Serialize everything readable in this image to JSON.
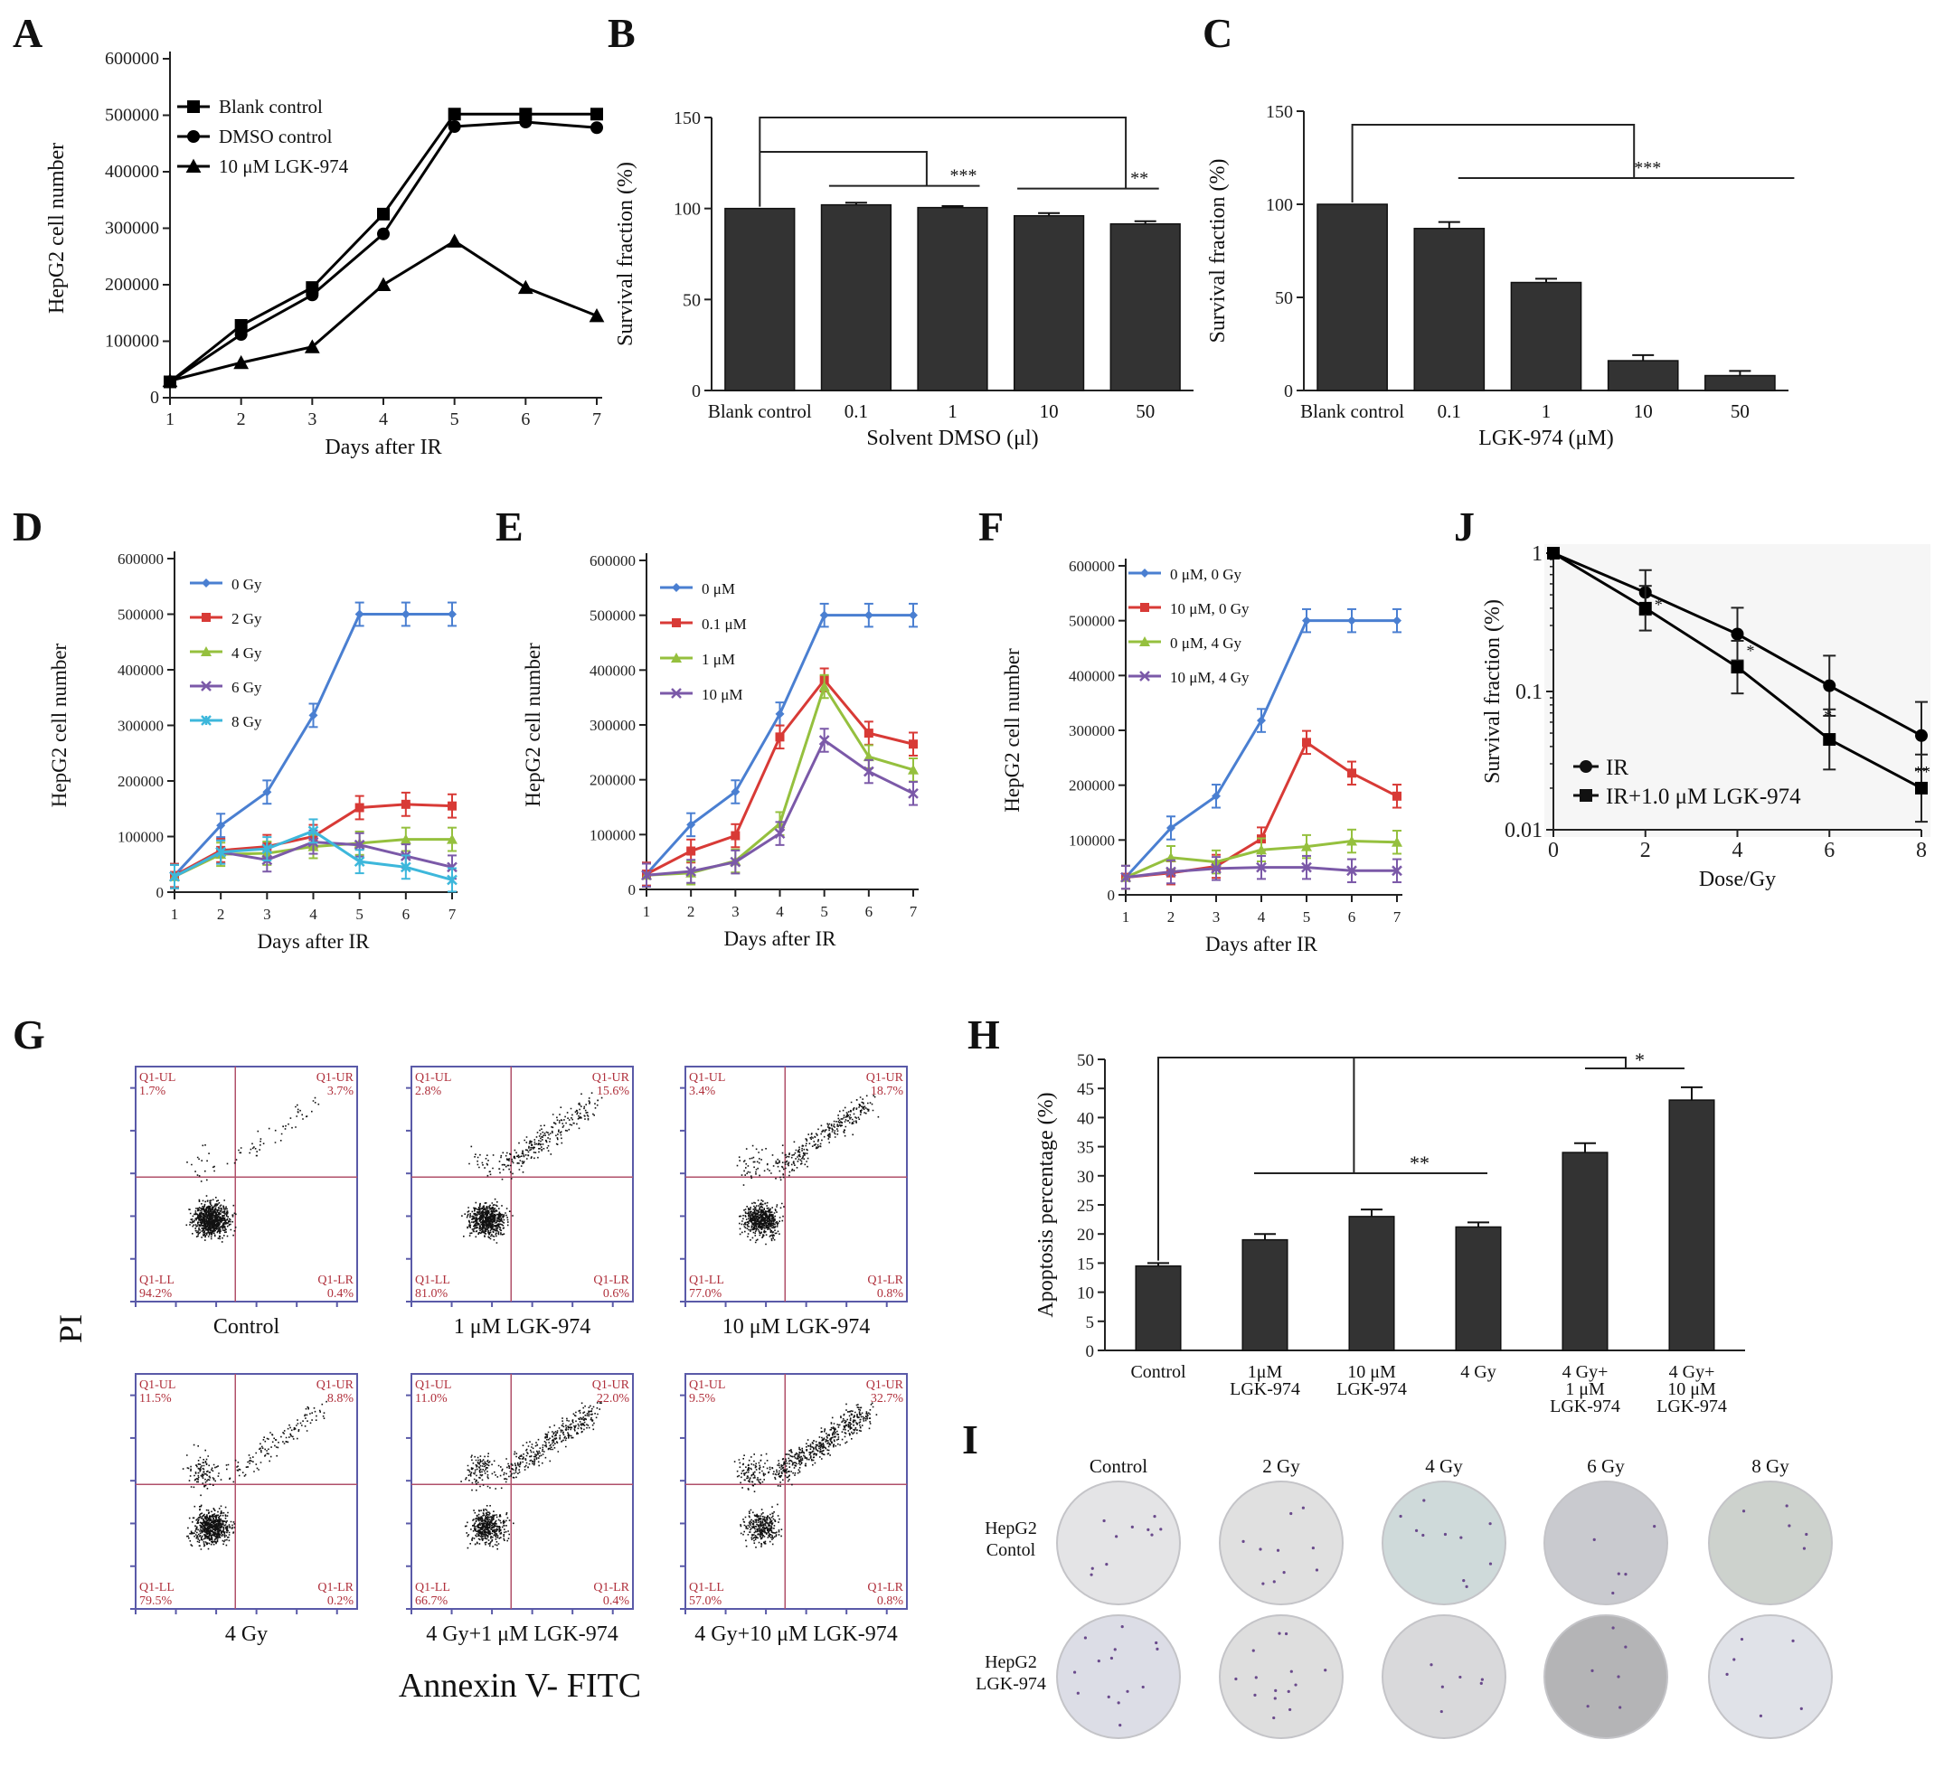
{
  "panel_letters": {
    "A": "A",
    "B": "B",
    "C": "C",
    "D": "D",
    "E": "E",
    "F": "F",
    "G": "G",
    "H": "H",
    "I": "I",
    "J": "J"
  },
  "chart_data": [
    {
      "id": "A",
      "type": "line",
      "xlabel": "Days after IR",
      "ylabel": "HepG2 cell number",
      "x": [
        1,
        2,
        3,
        4,
        5,
        6,
        7
      ],
      "xlim": [
        1,
        7
      ],
      "ylim": [
        0,
        600000
      ],
      "yticks": [
        0,
        100000,
        200000,
        300000,
        400000,
        500000,
        600000
      ],
      "series": [
        {
          "name": "Blank control",
          "marker": "square",
          "color": "#000000",
          "values": [
            28000,
            128000,
            195000,
            325000,
            502000,
            502000,
            502000
          ]
        },
        {
          "name": "DMSO control",
          "marker": "circle",
          "color": "#000000",
          "values": [
            28000,
            112000,
            182000,
            290000,
            480000,
            488000,
            478000
          ]
        },
        {
          "name": "10 μM LGK-974",
          "marker": "triangle",
          "color": "#000000",
          "values": [
            30000,
            62000,
            90000,
            200000,
            277000,
            195000,
            145000
          ]
        }
      ],
      "legend": "top-left"
    },
    {
      "id": "B",
      "type": "bar",
      "xlabel": "Solvent DMSO (μl)",
      "ylabel": "Survival fraction (%)",
      "categories": [
        "Blank control",
        "0.1",
        "1",
        "10",
        "50"
      ],
      "values": [
        100,
        102,
        100.5,
        96,
        91.5
      ],
      "errors": [
        0,
        1.2,
        0.8,
        1.5,
        1.5
      ],
      "ylim": [
        0,
        150
      ],
      "yticks": [
        0,
        50,
        100,
        150
      ],
      "significance": [
        "***",
        "**"
      ]
    },
    {
      "id": "C",
      "type": "bar",
      "xlabel": "LGK-974 (μM)",
      "ylabel": "Survival fraction (%)",
      "categories": [
        "Blank control",
        "0.1",
        "1",
        "10",
        "50"
      ],
      "values": [
        100,
        87,
        58,
        16,
        8
      ],
      "errors": [
        0,
        3.5,
        2,
        3,
        2.5
      ],
      "ylim": [
        0,
        150
      ],
      "yticks": [
        0,
        50,
        100,
        150
      ],
      "significance": [
        "***"
      ]
    },
    {
      "id": "D",
      "type": "line",
      "xlabel": "Days after IR",
      "ylabel": "HepG2 cell number",
      "x": [
        1,
        2,
        3,
        4,
        5,
        6,
        7
      ],
      "xlim": [
        1,
        7
      ],
      "ylim": [
        0,
        600000
      ],
      "yticks": [
        0,
        100000,
        200000,
        300000,
        400000,
        500000,
        600000
      ],
      "series": [
        {
          "name": "0 Gy",
          "color": "#4a7fd1",
          "values": [
            30000,
            120000,
            180000,
            318000,
            500000,
            500000,
            500000
          ]
        },
        {
          "name": "2 Gy",
          "color": "#d83a36",
          "values": [
            30000,
            75000,
            82000,
            100000,
            152000,
            158000,
            155000
          ]
        },
        {
          "name": "4 Gy",
          "color": "#95c03e",
          "values": [
            28000,
            68000,
            70000,
            82000,
            88000,
            95000,
            95000
          ]
        },
        {
          "name": "6 Gy",
          "color": "#7b59a8",
          "values": [
            28000,
            72000,
            58000,
            90000,
            85000,
            65000,
            45000
          ]
        },
        {
          "name": "8 Gy",
          "color": "#3db7db",
          "values": [
            28000,
            72000,
            78000,
            110000,
            55000,
            45000,
            22000
          ]
        }
      ],
      "legend": "top-left"
    },
    {
      "id": "E",
      "type": "line",
      "xlabel": "Days after IR",
      "ylabel": "HepG2 cell number",
      "x": [
        1,
        2,
        3,
        4,
        5,
        6,
        7
      ],
      "xlim": [
        1,
        7
      ],
      "ylim": [
        0,
        600000
      ],
      "yticks": [
        0,
        100000,
        200000,
        300000,
        400000,
        500000,
        600000
      ],
      "series": [
        {
          "name": "0 μM",
          "color": "#4a7fd1",
          "values": [
            28000,
            118000,
            178000,
            320000,
            500000,
            500000,
            500000
          ]
        },
        {
          "name": "0.1 μM",
          "color": "#d83a36",
          "values": [
            28000,
            70000,
            98000,
            278000,
            382000,
            285000,
            265000
          ]
        },
        {
          "name": "1 μM",
          "color": "#95c03e",
          "values": [
            26000,
            30000,
            52000,
            120000,
            370000,
            242000,
            218000
          ]
        },
        {
          "name": "10 μM",
          "color": "#7b59a8",
          "values": [
            26000,
            33000,
            50000,
            102000,
            272000,
            215000,
            175000
          ]
        }
      ],
      "legend": "top-left"
    },
    {
      "id": "F",
      "type": "line",
      "xlabel": "Days after IR",
      "ylabel": "HepG2 cell number",
      "x": [
        1,
        2,
        3,
        4,
        5,
        6,
        7
      ],
      "xlim": [
        1,
        7
      ],
      "ylim": [
        0,
        600000
      ],
      "yticks": [
        0,
        100000,
        200000,
        300000,
        400000,
        500000,
        600000
      ],
      "series": [
        {
          "name": "0 μM, 0 Gy",
          "color": "#4a7fd1",
          "values": [
            32000,
            122000,
            180000,
            318000,
            500000,
            500000,
            500000
          ]
        },
        {
          "name": "10 μM, 0 Gy",
          "color": "#d83a36",
          "values": [
            32000,
            40000,
            52000,
            102000,
            278000,
            222000,
            180000
          ]
        },
        {
          "name": "0 μM, 4 Gy",
          "color": "#95c03e",
          "values": [
            32000,
            68000,
            60000,
            82000,
            88000,
            98000,
            96000
          ]
        },
        {
          "name": "10 μM, 4 Gy",
          "color": "#7b59a8",
          "values": [
            32000,
            42000,
            48000,
            50000,
            50000,
            44000,
            44000
          ]
        }
      ],
      "legend": "top-left"
    },
    {
      "id": "J",
      "type": "line",
      "yscale": "log",
      "xlabel": "Dose/Gy",
      "ylabel": "Survival fraction (%)",
      "x": [
        0,
        2,
        4,
        6,
        8
      ],
      "xlim": [
        0,
        8
      ],
      "ylim": [
        0.01,
        1
      ],
      "yticks": [
        1,
        0.1,
        0.01
      ],
      "ytick_labels": [
        "1",
        "0.1",
        "0.01"
      ],
      "series": [
        {
          "name": "IR",
          "marker": "circle",
          "color": "#000000",
          "values": [
            1,
            0.52,
            0.26,
            0.11,
            0.048
          ]
        },
        {
          "name": "IR+1.0 μM LGK-974",
          "marker": "square",
          "color": "#000000",
          "values": [
            1,
            0.4,
            0.15,
            0.045,
            0.02
          ]
        }
      ],
      "significance": [
        "*",
        "*",
        "*",
        "**"
      ],
      "legend": "bottom-left"
    },
    {
      "id": "H",
      "type": "bar",
      "ylabel": "Apoptosis percentage (%)",
      "categories": [
        "Control",
        "1μM LGK-974",
        "10 μM LGK-974",
        "4 Gy",
        "4 Gy+ 1 μM LGK-974",
        "4 Gy+ 10 μM LGK-974"
      ],
      "category_lines": [
        [
          "Control"
        ],
        [
          "1μM",
          "LGK-974"
        ],
        [
          "10 μM",
          "LGK-974"
        ],
        [
          "4 Gy"
        ],
        [
          "4 Gy+",
          "1 μM",
          "LGK-974"
        ],
        [
          "4 Gy+",
          "10 μM",
          "LGK-974"
        ]
      ],
      "values": [
        14.5,
        19,
        23,
        21.2,
        34,
        43
      ],
      "errors": [
        0.5,
        1,
        1.2,
        0.8,
        1.6,
        2.2
      ],
      "ylim": [
        0,
        50
      ],
      "yticks": [
        0,
        5,
        10,
        15,
        20,
        25,
        30,
        35,
        40,
        45,
        50
      ],
      "significance": [
        "**",
        "*"
      ]
    }
  ],
  "flow_cytometry": {
    "y_axis_label": "PI",
    "x_axis_label": "Annexin V- FITC",
    "quadrant_names": {
      "ul": "Q1-UL",
      "ur": "Q1-UR",
      "ll": "Q1-LL",
      "lr": "Q1-LR"
    },
    "plots": [
      {
        "label": "Control",
        "ul": "1.7%",
        "ur": "3.7%",
        "ll": "94.2%",
        "lr": "0.4%"
      },
      {
        "label": "1 μM LGK-974",
        "ul": "2.8%",
        "ur": "15.6%",
        "ll": "81.0%",
        "lr": "0.6%"
      },
      {
        "label": "10 μM LGK-974",
        "ul": "3.4%",
        "ur": "18.7%",
        "ll": "77.0%",
        "lr": "0.8%"
      },
      {
        "label": "4 Gy",
        "ul": "11.5%",
        "ur": "8.8%",
        "ll": "79.5%",
        "lr": "0.2%"
      },
      {
        "label": "4 Gy+1 μM LGK-974",
        "ul": "11.0%",
        "ur": "22.0%",
        "ll": "66.7%",
        "lr": "0.4%"
      },
      {
        "label": "4 Gy+10 μM LGK-974",
        "ul": "9.5%",
        "ur": "32.7%",
        "ll": "57.0%",
        "lr": "0.8%"
      }
    ]
  },
  "colony_assay": {
    "columns": [
      "Control",
      "2 Gy",
      "4 Gy",
      "6 Gy",
      "8 Gy"
    ],
    "row_labels": [
      [
        "HepG2",
        "Contol"
      ],
      [
        "HepG2",
        "LGK-974"
      ]
    ],
    "plate_colors": [
      [
        "#e4e4e6",
        "#e0e0e0",
        "#cfdada",
        "#c9cacf",
        "#cdd2cd"
      ],
      [
        "#dcdde6",
        "#dedede",
        "#d9d9db",
        "#b4b4b6",
        "#e0e2e8"
      ]
    ]
  }
}
